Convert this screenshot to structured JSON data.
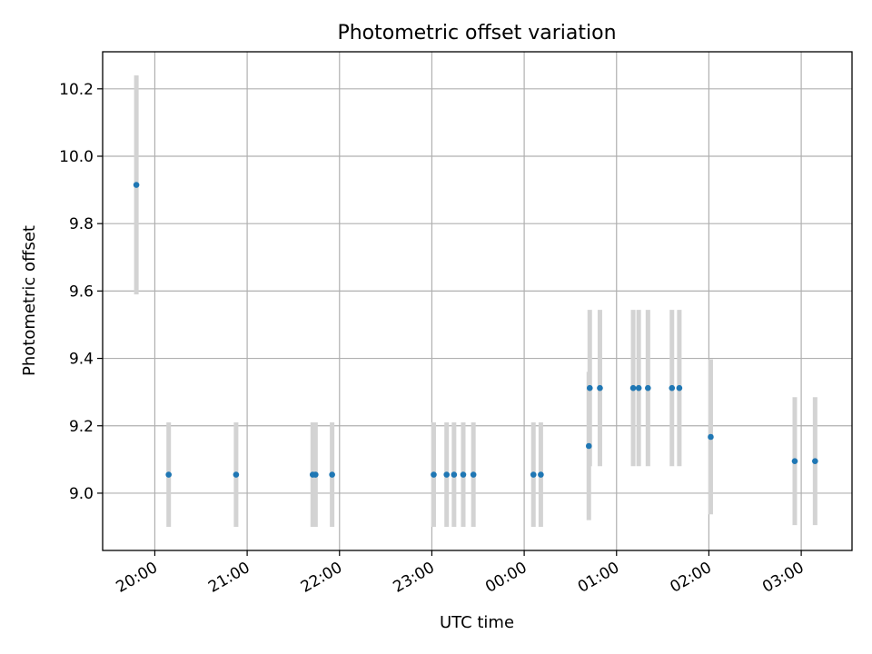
{
  "chart_data": {
    "type": "scatter",
    "title": "Photometric offset variation",
    "xlabel": "UTC time",
    "ylabel": "Photometric offset",
    "grid": true,
    "colors": {
      "point": "#1f77b4",
      "errorbar": "#d3d3d3"
    },
    "x_unit": "hours since 19:00 UTC",
    "xlim": [
      18.935,
      27.05
    ],
    "ylim": [
      8.83,
      10.31
    ],
    "xticks": [
      {
        "value": 19.5,
        "label": "20:00"
      },
      {
        "value": 20.5,
        "label": "21:00"
      },
      {
        "value": 21.5,
        "label": "22:00"
      },
      {
        "value": 22.5,
        "label": "23:00"
      },
      {
        "value": 23.5,
        "label": "00:00"
      },
      {
        "value": 24.5,
        "label": "01:00"
      },
      {
        "value": 25.5,
        "label": "02:00"
      },
      {
        "value": 26.5,
        "label": "03:00"
      }
    ],
    "yticks": [
      {
        "value": 9.0,
        "label": "9.0"
      },
      {
        "value": 9.2,
        "label": "9.2"
      },
      {
        "value": 9.4,
        "label": "9.4"
      },
      {
        "value": 9.6,
        "label": "9.6"
      },
      {
        "value": 9.8,
        "label": "9.8"
      },
      {
        "value": 10.0,
        "label": "10.0"
      },
      {
        "value": 10.2,
        "label": "10.2"
      }
    ],
    "points": [
      {
        "x": 19.3,
        "y": 9.915,
        "err": 0.325
      },
      {
        "x": 19.65,
        "y": 9.055,
        "err": 0.155
      },
      {
        "x": 20.38,
        "y": 9.055,
        "err": 0.155
      },
      {
        "x": 21.21,
        "y": 9.055,
        "err": 0.155
      },
      {
        "x": 21.24,
        "y": 9.055,
        "err": 0.155
      },
      {
        "x": 21.42,
        "y": 9.055,
        "err": 0.155
      },
      {
        "x": 22.52,
        "y": 9.055,
        "err": 0.155
      },
      {
        "x": 22.66,
        "y": 9.055,
        "err": 0.155
      },
      {
        "x": 22.74,
        "y": 9.055,
        "err": 0.155
      },
      {
        "x": 22.84,
        "y": 9.055,
        "err": 0.155
      },
      {
        "x": 22.95,
        "y": 9.055,
        "err": 0.155
      },
      {
        "x": 23.6,
        "y": 9.055,
        "err": 0.155
      },
      {
        "x": 23.68,
        "y": 9.055,
        "err": 0.155
      },
      {
        "x": 24.2,
        "y": 9.14,
        "err": 0.22
      },
      {
        "x": 24.21,
        "y": 9.312,
        "err": 0.232
      },
      {
        "x": 24.32,
        "y": 9.312,
        "err": 0.232
      },
      {
        "x": 24.68,
        "y": 9.312,
        "err": 0.232
      },
      {
        "x": 24.74,
        "y": 9.312,
        "err": 0.232
      },
      {
        "x": 24.84,
        "y": 9.312,
        "err": 0.232
      },
      {
        "x": 25.1,
        "y": 9.312,
        "err": 0.232
      },
      {
        "x": 25.18,
        "y": 9.312,
        "err": 0.232
      },
      {
        "x": 25.52,
        "y": 9.167,
        "err": 0.23
      },
      {
        "x": 26.43,
        "y": 9.095,
        "err": 0.19
      },
      {
        "x": 26.65,
        "y": 9.095,
        "err": 0.19
      }
    ]
  }
}
